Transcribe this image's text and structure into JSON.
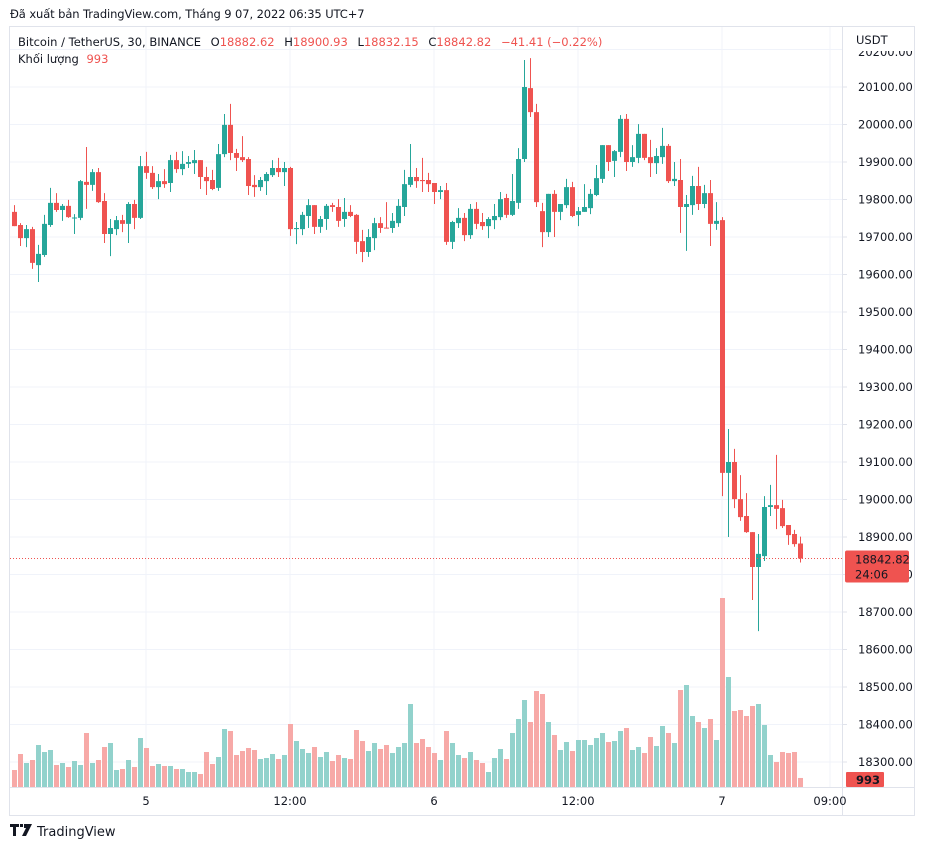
{
  "header": {
    "published": "Đã xuất bản TradingView.com, Tháng 9 07, 2022 06:35 UTC+7"
  },
  "legend": {
    "symbol": "Bitcoin / TetherUS, 30, BINANCE",
    "o_label": "O",
    "o_value": "18882.62",
    "h_label": "H",
    "h_value": "18900.93",
    "l_label": "L",
    "l_value": "18832.15",
    "c_label": "C",
    "c_value": "18842.82",
    "change": "−41.41 (−0.22%)",
    "volume_label": "Khối lượng",
    "volume_value": "993"
  },
  "axis": {
    "currency": "USDT",
    "price_label": "18842.82",
    "countdown": "24:06",
    "volume_label": "993"
  },
  "footer": {
    "brand": "TradingView",
    "logo": "17"
  },
  "colors": {
    "up": "#26a69a",
    "down": "#ef5350",
    "up_volume": "#92d2cc",
    "down_volume": "#f7a9a7",
    "grid": "#f0f3fa",
    "price_line": "#ef5350",
    "text": "#131722"
  },
  "chart_data": {
    "type": "candlestick",
    "title": "Bitcoin / TetherUS, 30, BINANCE",
    "interval": "30",
    "ylabel": "USDT",
    "ylim": [
      18250,
      20210
    ],
    "y_ticks": [
      20200,
      20100,
      20000,
      19900,
      19800,
      19700,
      19600,
      19500,
      19400,
      19300,
      19200,
      19100,
      19000,
      18900,
      18800,
      18700,
      18600,
      18500,
      18400,
      18300
    ],
    "x_ticks": [
      {
        "label": "5",
        "index": 22
      },
      {
        "label": "12:00",
        "index": 46
      },
      {
        "label": "6",
        "index": 70
      },
      {
        "label": "12:00",
        "index": 94
      },
      {
        "label": "7",
        "index": 118
      },
      {
        "label": "09:00",
        "index": 136
      }
    ],
    "grid": true,
    "last_price": 18842.82,
    "ohlc": [
      [
        19767,
        19785,
        19729,
        19729
      ],
      [
        19732,
        19737,
        19676,
        19697
      ],
      [
        19697,
        19732,
        19673,
        19721
      ],
      [
        19721,
        19727,
        19615,
        19631
      ],
      [
        19625,
        19679,
        19580,
        19655
      ],
      [
        19652,
        19759,
        19647,
        19735
      ],
      [
        19732,
        19831,
        19727,
        19791
      ],
      [
        19791,
        19817,
        19767,
        19772
      ],
      [
        19772,
        19788,
        19743,
        19783
      ],
      [
        19783,
        19799,
        19751,
        19753
      ],
      [
        19751,
        19761,
        19708,
        19752
      ],
      [
        19751,
        19852,
        19745,
        19849
      ],
      [
        19847,
        19940,
        19775,
        19839
      ],
      [
        19839,
        19881,
        19823,
        19873
      ],
      [
        19873,
        19884,
        19791,
        19793
      ],
      [
        19796,
        19817,
        19684,
        19708
      ],
      [
        19708,
        19748,
        19649,
        19724
      ],
      [
        19721,
        19756,
        19705,
        19745
      ],
      [
        19745,
        19759,
        19713,
        19735
      ],
      [
        19735,
        19793,
        19684,
        19788
      ],
      [
        19788,
        19799,
        19721,
        19751
      ],
      [
        19751,
        19916,
        19748,
        19889
      ],
      [
        19889,
        19927,
        19855,
        19871
      ],
      [
        19871,
        19889,
        19828,
        19833
      ],
      [
        19833,
        19868,
        19801,
        19849
      ],
      [
        19849,
        19881,
        19831,
        19841
      ],
      [
        19844,
        19919,
        19820,
        19905
      ],
      [
        19905,
        19927,
        19871,
        19881
      ],
      [
        19881,
        19929,
        19865,
        19895
      ],
      [
        19895,
        19916,
        19884,
        19900
      ],
      [
        19897,
        19932,
        19868,
        19905
      ],
      [
        19905,
        19905,
        19828,
        19860
      ],
      [
        19860,
        19887,
        19812,
        19849
      ],
      [
        19852,
        19879,
        19825,
        19828
      ],
      [
        19831,
        19948,
        19823,
        19921
      ],
      [
        19921,
        20028,
        19913,
        19999
      ],
      [
        19999,
        20055,
        19905,
        19924
      ],
      [
        19924,
        19935,
        19876,
        19911
      ],
      [
        19913,
        19969,
        19900,
        19905
      ],
      [
        19908,
        19913,
        19812,
        19836
      ],
      [
        19839,
        19865,
        19807,
        19833
      ],
      [
        19833,
        19860,
        19823,
        19852
      ],
      [
        19849,
        19873,
        19812,
        19868
      ],
      [
        19865,
        19905,
        19860,
        19884
      ],
      [
        19884,
        19911,
        19860,
        19873
      ],
      [
        19873,
        19900,
        19836,
        19884
      ],
      [
        19884,
        19887,
        19703,
        19721
      ],
      [
        19721,
        19740,
        19681,
        19724
      ],
      [
        19721,
        19767,
        19705,
        19759
      ],
      [
        19756,
        19801,
        19724,
        19785
      ],
      [
        19785,
        19785,
        19708,
        19727
      ],
      [
        19727,
        19756,
        19711,
        19748
      ],
      [
        19748,
        19788,
        19719,
        19783
      ],
      [
        19785,
        19791,
        19767,
        19780
      ],
      [
        19780,
        19801,
        19727,
        19743
      ],
      [
        19748,
        19804,
        19727,
        19767
      ],
      [
        19767,
        19785,
        19753,
        19756
      ],
      [
        19759,
        19761,
        19655,
        19687
      ],
      [
        19689,
        19719,
        19633,
        19660
      ],
      [
        19660,
        19721,
        19647,
        19700
      ],
      [
        19697,
        19751,
        19665,
        19737
      ],
      [
        19737,
        19753,
        19711,
        19724
      ],
      [
        19725,
        19793,
        19724,
        19724
      ],
      [
        19724,
        19764,
        19711,
        19743
      ],
      [
        19737,
        19801,
        19727,
        19783
      ],
      [
        19780,
        19879,
        19756,
        19841
      ],
      [
        19839,
        19948,
        19833,
        19860
      ],
      [
        19860,
        19884,
        19831,
        19849
      ],
      [
        19852,
        19911,
        19820,
        19849
      ],
      [
        19852,
        19871,
        19820,
        19841
      ],
      [
        19844,
        19844,
        19788,
        19820
      ],
      [
        19820,
        19836,
        19801,
        19825
      ],
      [
        19825,
        19844,
        19679,
        19687
      ],
      [
        19687,
        19743,
        19668,
        19740
      ],
      [
        19737,
        19777,
        19724,
        19751
      ],
      [
        19751,
        19764,
        19689,
        19705
      ],
      [
        19705,
        19788,
        19695,
        19775
      ],
      [
        19775,
        19793,
        19721,
        19735
      ],
      [
        19740,
        19764,
        19719,
        19729
      ],
      [
        19729,
        19753,
        19697,
        19748
      ],
      [
        19745,
        19788,
        19721,
        19756
      ],
      [
        19753,
        19820,
        19745,
        19801
      ],
      [
        19804,
        19815,
        19751,
        19759
      ],
      [
        19759,
        19868,
        19756,
        19796
      ],
      [
        19791,
        19937,
        19775,
        19908
      ],
      [
        19908,
        20172,
        19900,
        20100
      ],
      [
        20097,
        20177,
        20020,
        20033
      ],
      [
        20033,
        20055,
        19780,
        19793
      ],
      [
        19769,
        19791,
        19673,
        19713
      ],
      [
        19713,
        19815,
        19700,
        19815
      ],
      [
        19815,
        19825,
        19700,
        19767
      ],
      [
        19767,
        19788,
        19745,
        19788
      ],
      [
        19785,
        19855,
        19777,
        19833
      ],
      [
        19833,
        19847,
        19753,
        19756
      ],
      [
        19759,
        19780,
        19729,
        19769
      ],
      [
        19767,
        19841,
        19767,
        19780
      ],
      [
        19777,
        19828,
        19761,
        19815
      ],
      [
        19812,
        19892,
        19809,
        19857
      ],
      [
        19855,
        19945,
        19844,
        19945
      ],
      [
        19945,
        19945,
        19876,
        19900
      ],
      [
        19903,
        19932,
        19860,
        19929
      ],
      [
        19927,
        20025,
        19913,
        20015
      ],
      [
        20015,
        20028,
        19876,
        19900
      ],
      [
        19900,
        19945,
        19887,
        19913
      ],
      [
        19911,
        20001,
        19897,
        19975
      ],
      [
        19975,
        19975,
        19905,
        19911
      ],
      [
        19913,
        19959,
        19860,
        19897
      ],
      [
        19897,
        19937,
        19868,
        19916
      ],
      [
        19913,
        19991,
        19895,
        19943
      ],
      [
        19943,
        19948,
        19844,
        19849
      ],
      [
        19849,
        19900,
        19836,
        19855
      ],
      [
        19852,
        19908,
        19711,
        19780
      ],
      [
        19780,
        19812,
        19663,
        19788
      ],
      [
        19785,
        19863,
        19759,
        19836
      ],
      [
        19836,
        19887,
        19772,
        19788
      ],
      [
        19788,
        19839,
        19777,
        19817
      ],
      [
        19817,
        19852,
        19676,
        19735
      ],
      [
        19735,
        19793,
        19719,
        19743
      ],
      [
        19745,
        19753,
        19009,
        19071
      ],
      [
        19071,
        19188,
        18900,
        19100
      ],
      [
        19100,
        19135,
        18977,
        19001
      ],
      [
        19001,
        19065,
        18943,
        18953
      ],
      [
        18956,
        19017,
        18911,
        18913
      ],
      [
        18913,
        18913,
        18732,
        18820
      ],
      [
        18820,
        18908,
        18649,
        18855
      ],
      [
        18849,
        19009,
        18836,
        18980
      ],
      [
        18980,
        19039,
        18956,
        18985
      ],
      [
        18985,
        19119,
        18921,
        18975
      ],
      [
        18977,
        18999,
        18924,
        18929
      ],
      [
        18932,
        18932,
        18879,
        18905
      ],
      [
        18908,
        18919,
        18874,
        18881
      ],
      [
        18882.62,
        18900.93,
        18832.15,
        18842.82
      ]
    ],
    "volume": [
      1870,
      3630,
      2640,
      2970,
      4620,
      3850,
      4070,
      2420,
      2640,
      2200,
      2860,
      2420,
      5940,
      2640,
      2970,
      4400,
      4840,
      1870,
      1980,
      2970,
      2200,
      5390,
      4290,
      2310,
      2530,
      2310,
      2310,
      1980,
      1980,
      1650,
      1650,
      1430,
      3850,
      2530,
      3300,
      6380,
      6160,
      3520,
      3960,
      4290,
      4070,
      3080,
      3190,
      3630,
      3080,
      3520,
      6930,
      5060,
      4180,
      3740,
      4400,
      3300,
      3850,
      2860,
      3520,
      3190,
      3080,
      6270,
      5060,
      3960,
      4840,
      4180,
      4620,
      3740,
      4400,
      4840,
      9130,
      4840,
      5280,
      4400,
      3740,
      2970,
      6160,
      4840,
      3520,
      3190,
      3850,
      2970,
      2640,
      1650,
      3190,
      4180,
      3080,
      5940,
      7480,
      9570,
      7150,
      10560,
      10230,
      7150,
      5720,
      4070,
      4950,
      3960,
      5170,
      5170,
      4620,
      5390,
      5940,
      4950,
      5060,
      6160,
      6490,
      4070,
      4400,
      3740,
      5500,
      4510,
      6710,
      5940,
      4840,
      10670,
      11220,
      7810,
      7150,
      6490,
      7480,
      5170,
      20790,
      12100,
      8360,
      8470,
      7810,
      8910,
      9130,
      6820,
      3520,
      2750,
      3850,
      3740,
      3850,
      993
    ]
  }
}
